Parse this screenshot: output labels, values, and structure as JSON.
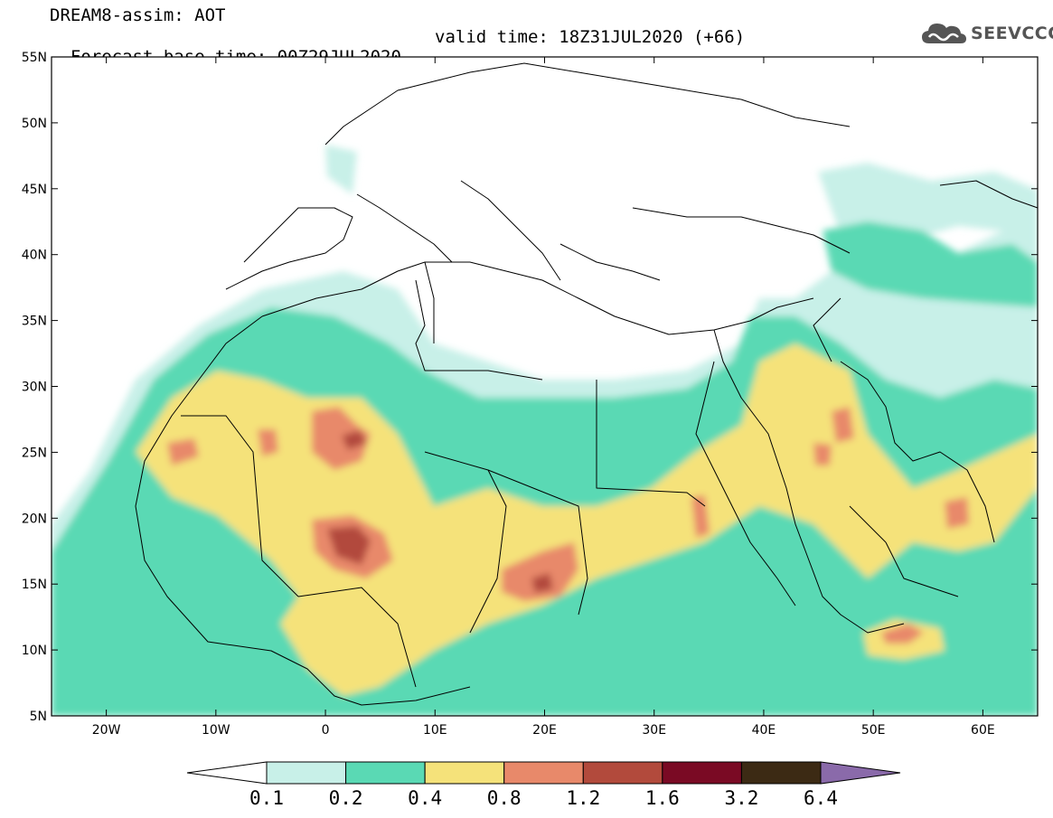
{
  "header": {
    "title_line1": "DREAM8-assim: AOT",
    "title_line2_left": "Forecast base time: 00Z29JUL2020",
    "title_line2_right": "valid time: 18Z31JUL2020 (+66)"
  },
  "logo": {
    "text": "SEEVCCC",
    "icon": "cloud-icon",
    "color": "#555555"
  },
  "map": {
    "lon_range": [
      -25,
      65
    ],
    "lat_range": [
      5,
      55
    ],
    "lat_ticks": [
      "55N",
      "50N",
      "45N",
      "40N",
      "35N",
      "30N",
      "25N",
      "20N",
      "15N",
      "10N",
      "5N"
    ],
    "lon_ticks": [
      "20W",
      "10W",
      "0",
      "10E",
      "20E",
      "30E",
      "40E",
      "50E",
      "60E"
    ],
    "grid": false,
    "coastlines_and_borders": true
  },
  "colorbar": {
    "labels": [
      "0.1",
      "0.2",
      "0.4",
      "0.8",
      "1.2",
      "1.6",
      "3.2",
      "6.4"
    ],
    "colors": [
      "#ffffff",
      "#c8f0e8",
      "#5ad9b4",
      "#f5e27a",
      "#e8896a",
      "#b24a3c",
      "#7a0a24",
      "#3c2a14",
      "#8a6aaa"
    ],
    "extend": "both"
  }
}
